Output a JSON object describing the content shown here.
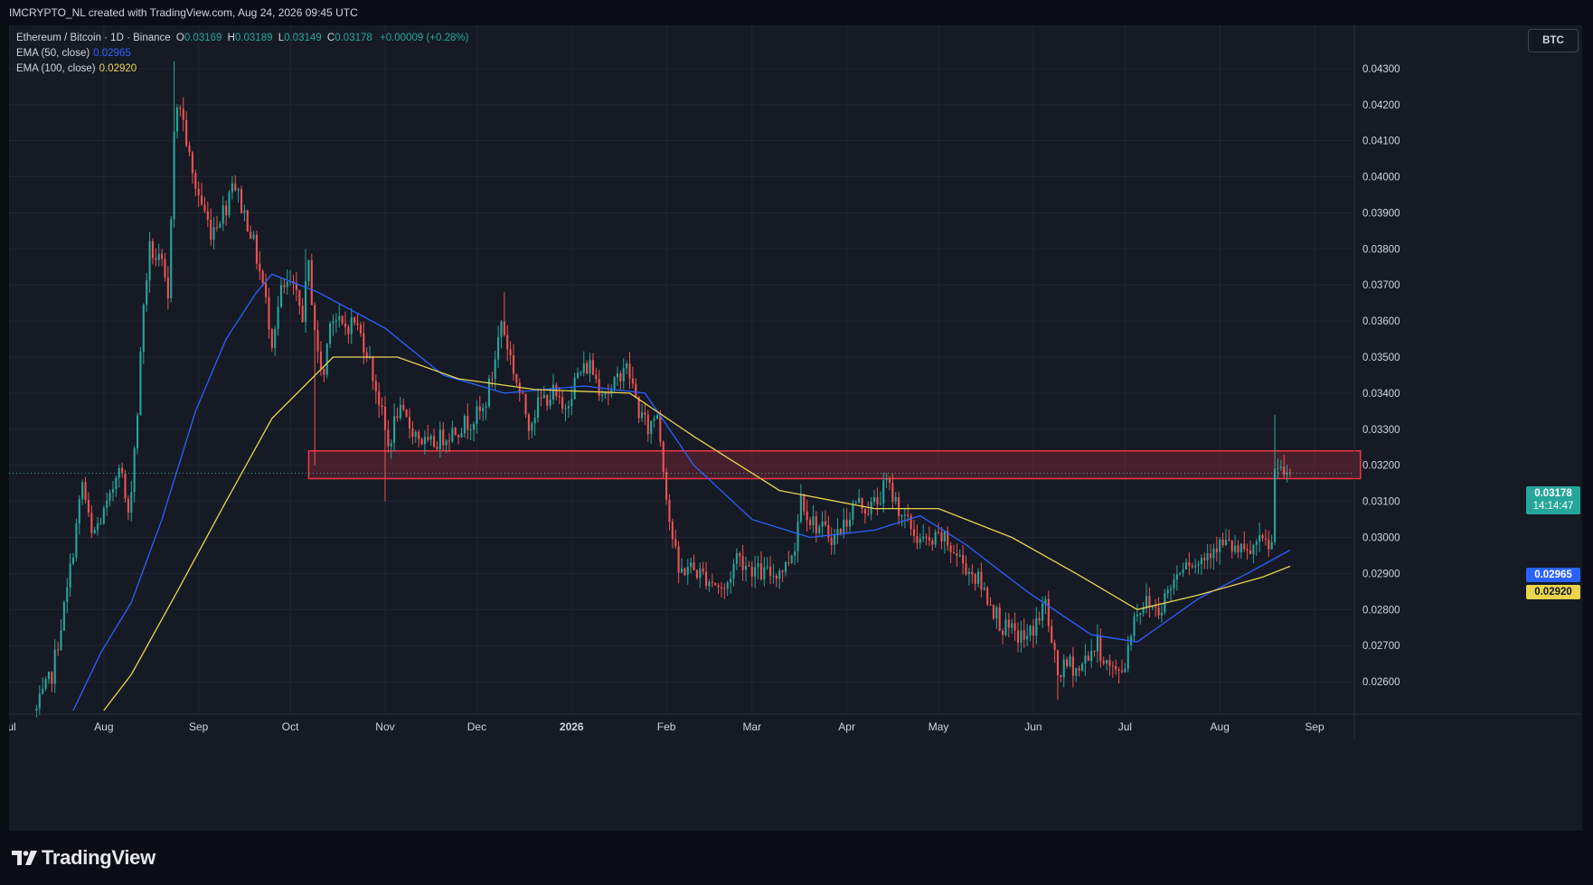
{
  "header": {
    "attribution": "IMCRYPTO_NL created with TradingView.com, Aug 24, 2026 09:45 UTC"
  },
  "legend": {
    "symbol": "Ethereum / Bitcoin · 1D · Binance",
    "open_label": "O",
    "open": "0.03169",
    "high_label": "H",
    "high": "0.03189",
    "low_label": "L",
    "low": "0.03149",
    "close_label": "C",
    "close": "0.03178",
    "change": "+0.00009 (+0.28%)",
    "ema50_label": "EMA (50, close)",
    "ema50_value": "0.02965",
    "ema100_label": "EMA (100, close)",
    "ema100_value": "0.02920"
  },
  "currency_badge": "BTC",
  "price_tags": {
    "last_price": "0.03178",
    "countdown": "14:14:47",
    "ema50": "0.02965",
    "ema100": "0.02920"
  },
  "branding": {
    "wordmark": "TradingView",
    "logo_icon": "tradingview-logo-icon"
  },
  "colors": {
    "up": "#26a69a",
    "down": "#ef5350",
    "ema50": "#2962ff",
    "ema100": "#e8d44d",
    "zone_border": "#f23645",
    "zone_fill": "#6e2633",
    "background": "#161a25",
    "grid": "#222634"
  },
  "chart_data": {
    "type": "candlestick",
    "title": "Ethereum / Bitcoin · 1D · Binance",
    "y_scale": "linear",
    "ylim": [
      0.0251,
      0.0442
    ],
    "y_ticks": [
      "0.02600",
      "0.02700",
      "0.02800",
      "0.02900",
      "0.03000",
      "0.03100",
      "0.03200",
      "0.03300",
      "0.03400",
      "0.03500",
      "0.03600",
      "0.03700",
      "0.03800",
      "0.03900",
      "0.04000",
      "0.04100",
      "0.04200",
      "0.04300"
    ],
    "x_range": [
      "2025-07-01",
      "2026-09-14"
    ],
    "x_ticks": [
      {
        "date": "2025-07-01",
        "label": "Jul"
      },
      {
        "date": "2025-08-01",
        "label": "Aug"
      },
      {
        "date": "2025-09-01",
        "label": "Sep"
      },
      {
        "date": "2025-10-01",
        "label": "Oct"
      },
      {
        "date": "2025-11-01",
        "label": "Nov"
      },
      {
        "date": "2025-12-01",
        "label": "Dec"
      },
      {
        "date": "2026-01-01",
        "label": "2026"
      },
      {
        "date": "2026-02-01",
        "label": "Feb"
      },
      {
        "date": "2026-03-01",
        "label": "Mar"
      },
      {
        "date": "2026-04-01",
        "label": "Apr"
      },
      {
        "date": "2026-05-01",
        "label": "May"
      },
      {
        "date": "2026-06-01",
        "label": "Jun"
      },
      {
        "date": "2026-07-01",
        "label": "Jul"
      },
      {
        "date": "2026-08-01",
        "label": "Aug"
      },
      {
        "date": "2026-09-01",
        "label": "Sep"
      }
    ],
    "last_close": 0.03178,
    "close_path": [
      [
        "2025-07-10",
        0.0252
      ],
      [
        "2025-07-15",
        0.0262
      ],
      [
        "2025-07-20",
        0.0285
      ],
      [
        "2025-07-25",
        0.0315
      ],
      [
        "2025-07-28",
        0.03
      ],
      [
        "2025-08-03",
        0.031
      ],
      [
        "2025-08-06",
        0.0322
      ],
      [
        "2025-08-09",
        0.0305
      ],
      [
        "2025-08-12",
        0.0335
      ],
      [
        "2025-08-14",
        0.0365
      ],
      [
        "2025-08-16",
        0.038
      ],
      [
        "2025-08-20",
        0.0375
      ],
      [
        "2025-08-22",
        0.0365
      ],
      [
        "2025-08-24",
        0.0415
      ],
      [
        "2025-08-26",
        0.042
      ],
      [
        "2025-08-30",
        0.04
      ],
      [
        "2025-09-05",
        0.0385
      ],
      [
        "2025-09-10",
        0.0392
      ],
      [
        "2025-09-12",
        0.04
      ],
      [
        "2025-09-15",
        0.0392
      ],
      [
        "2025-09-18",
        0.0385
      ],
      [
        "2025-09-22",
        0.037
      ],
      [
        "2025-09-25",
        0.0355
      ],
      [
        "2025-09-28",
        0.0368
      ],
      [
        "2025-10-01",
        0.037
      ],
      [
        "2025-10-05",
        0.0362
      ],
      [
        "2025-10-07",
        0.0375
      ],
      [
        "2025-10-10",
        0.035
      ],
      [
        "2025-10-12",
        0.0345
      ],
      [
        "2025-10-14",
        0.0362
      ],
      [
        "2025-10-18",
        0.0358
      ],
      [
        "2025-10-22",
        0.036
      ],
      [
        "2025-10-26",
        0.0352
      ],
      [
        "2025-10-30",
        0.0338
      ],
      [
        "2025-11-02",
        0.0325
      ],
      [
        "2025-11-05",
        0.0335
      ],
      [
        "2025-11-10",
        0.033
      ],
      [
        "2025-11-15",
        0.0325
      ],
      [
        "2025-11-20",
        0.0328
      ],
      [
        "2025-11-24",
        0.033
      ],
      [
        "2025-11-28",
        0.0332
      ],
      [
        "2025-12-03",
        0.0335
      ],
      [
        "2025-12-06",
        0.0345
      ],
      [
        "2025-12-09",
        0.036
      ],
      [
        "2025-12-12",
        0.035
      ],
      [
        "2025-12-15",
        0.034
      ],
      [
        "2025-12-18",
        0.0332
      ],
      [
        "2025-12-22",
        0.0338
      ],
      [
        "2025-12-26",
        0.034
      ],
      [
        "2025-12-29",
        0.0335
      ],
      [
        "2026-01-03",
        0.0345
      ],
      [
        "2026-01-07",
        0.0348
      ],
      [
        "2026-01-10",
        0.0342
      ],
      [
        "2026-01-14",
        0.034
      ],
      [
        "2026-01-18",
        0.0348
      ],
      [
        "2026-01-20",
        0.0345
      ],
      [
        "2026-01-23",
        0.0335
      ],
      [
        "2026-01-26",
        0.033
      ],
      [
        "2026-01-29",
        0.0335
      ],
      [
        "2026-01-31",
        0.032
      ],
      [
        "2026-02-02",
        0.0305
      ],
      [
        "2026-02-05",
        0.029
      ],
      [
        "2026-02-08",
        0.0292
      ],
      [
        "2026-02-12",
        0.029
      ],
      [
        "2026-02-16",
        0.0288
      ],
      [
        "2026-02-20",
        0.0285
      ],
      [
        "2026-02-24",
        0.0295
      ],
      [
        "2026-02-28",
        0.0292
      ],
      [
        "2026-03-04",
        0.029
      ],
      [
        "2026-03-08",
        0.029
      ],
      [
        "2026-03-12",
        0.0292
      ],
      [
        "2026-03-15",
        0.0298
      ],
      [
        "2026-03-17",
        0.0312
      ],
      [
        "2026-03-20",
        0.0305
      ],
      [
        "2026-03-24",
        0.0302
      ],
      [
        "2026-03-28",
        0.03
      ],
      [
        "2026-04-01",
        0.0305
      ],
      [
        "2026-04-04",
        0.031
      ],
      [
        "2026-04-08",
        0.0308
      ],
      [
        "2026-04-11",
        0.031
      ],
      [
        "2026-04-14",
        0.0315
      ],
      [
        "2026-04-17",
        0.031
      ],
      [
        "2026-04-20",
        0.0305
      ],
      [
        "2026-04-24",
        0.03
      ],
      [
        "2026-04-28",
        0.0298
      ],
      [
        "2026-05-02",
        0.03
      ],
      [
        "2026-05-06",
        0.0296
      ],
      [
        "2026-05-10",
        0.0292
      ],
      [
        "2026-05-14",
        0.0288
      ],
      [
        "2026-05-18",
        0.0282
      ],
      [
        "2026-05-22",
        0.0275
      ],
      [
        "2026-05-26",
        0.0273
      ],
      [
        "2026-05-30",
        0.0272
      ],
      [
        "2026-06-03",
        0.0278
      ],
      [
        "2026-06-05",
        0.0282
      ],
      [
        "2026-06-07",
        0.027
      ],
      [
        "2026-06-09",
        0.0262
      ],
      [
        "2026-06-13",
        0.0265
      ],
      [
        "2026-06-16",
        0.0263
      ],
      [
        "2026-06-19",
        0.0268
      ],
      [
        "2026-06-22",
        0.027
      ],
      [
        "2026-06-25",
        0.0265
      ],
      [
        "2026-06-28",
        0.0262
      ],
      [
        "2026-07-01",
        0.0265
      ],
      [
        "2026-07-03",
        0.0275
      ],
      [
        "2026-07-05",
        0.028
      ],
      [
        "2026-07-08",
        0.0282
      ],
      [
        "2026-07-12",
        0.028
      ],
      [
        "2026-07-15",
        0.0285
      ],
      [
        "2026-07-18",
        0.029
      ],
      [
        "2026-07-21",
        0.0295
      ],
      [
        "2026-07-24",
        0.0292
      ],
      [
        "2026-07-27",
        0.0295
      ],
      [
        "2026-07-30",
        0.0298
      ],
      [
        "2026-08-03",
        0.0298
      ],
      [
        "2026-08-07",
        0.0296
      ],
      [
        "2026-08-10",
        0.0295
      ],
      [
        "2026-08-13",
        0.0298
      ],
      [
        "2026-08-16",
        0.0298
      ],
      [
        "2026-08-18",
        0.0298
      ],
      [
        "2026-08-19",
        0.0318
      ],
      [
        "2026-08-20",
        0.0322
      ],
      [
        "2026-08-21",
        0.032
      ],
      [
        "2026-08-22",
        0.0315
      ],
      [
        "2026-08-23",
        0.0316
      ],
      [
        "2026-08-24",
        0.03178
      ]
    ],
    "spikes": [
      {
        "date": "2025-08-24",
        "high": 0.0432
      },
      {
        "date": "2025-10-06",
        "high": 0.038
      },
      {
        "date": "2025-10-09",
        "low": 0.032
      },
      {
        "date": "2025-11-01",
        "low": 0.031
      },
      {
        "date": "2025-12-10",
        "high": 0.0368
      },
      {
        "date": "2026-06-09",
        "low": 0.0255
      },
      {
        "date": "2026-08-19",
        "high": 0.0334
      }
    ],
    "series": [
      {
        "name": "EMA (50, close)",
        "color": "#2962ff",
        "points": [
          [
            "2025-07-22",
            0.0252
          ],
          [
            "2025-07-31",
            0.0268
          ],
          [
            "2025-08-10",
            0.0282
          ],
          [
            "2025-08-20",
            0.0305
          ],
          [
            "2025-08-31",
            0.0335
          ],
          [
            "2025-09-10",
            0.0355
          ],
          [
            "2025-09-20",
            0.0368
          ],
          [
            "2025-09-25",
            0.0373
          ],
          [
            "2025-10-10",
            0.0368
          ],
          [
            "2025-11-01",
            0.0358
          ],
          [
            "2025-11-20",
            0.0345
          ],
          [
            "2025-12-10",
            0.034
          ],
          [
            "2026-01-05",
            0.0342
          ],
          [
            "2026-01-25",
            0.034
          ],
          [
            "2026-02-10",
            0.032
          ],
          [
            "2026-03-01",
            0.0305
          ],
          [
            "2026-03-20",
            0.03
          ],
          [
            "2026-04-10",
            0.0302
          ],
          [
            "2026-04-25",
            0.0306
          ],
          [
            "2026-05-10",
            0.0298
          ],
          [
            "2026-05-30",
            0.0285
          ],
          [
            "2026-06-20",
            0.0273
          ],
          [
            "2026-07-05",
            0.0271
          ],
          [
            "2026-07-25",
            0.0283
          ],
          [
            "2026-08-10",
            0.029
          ],
          [
            "2026-08-24",
            0.02965
          ]
        ]
      },
      {
        "name": "EMA (100, close)",
        "color": "#e8d44d",
        "points": [
          [
            "2025-08-01",
            0.0252
          ],
          [
            "2025-08-10",
            0.0262
          ],
          [
            "2025-08-25",
            0.0285
          ],
          [
            "2025-09-10",
            0.031
          ],
          [
            "2025-09-25",
            0.0333
          ],
          [
            "2025-10-15",
            0.035
          ],
          [
            "2025-11-05",
            0.035
          ],
          [
            "2025-11-25",
            0.0344
          ],
          [
            "2025-12-20",
            0.0341
          ],
          [
            "2026-01-20",
            0.034
          ],
          [
            "2026-02-10",
            0.0328
          ],
          [
            "2026-03-10",
            0.0313
          ],
          [
            "2026-04-10",
            0.0308
          ],
          [
            "2026-05-01",
            0.0308
          ],
          [
            "2026-05-25",
            0.03
          ],
          [
            "2026-06-15",
            0.029
          ],
          [
            "2026-07-05",
            0.028
          ],
          [
            "2026-07-25",
            0.0284
          ],
          [
            "2026-08-15",
            0.0289
          ],
          [
            "2026-08-24",
            0.0292
          ]
        ]
      }
    ],
    "zones": [
      {
        "name": "resistance-zone",
        "x_start": "2025-10-07",
        "x_end": "2026-09-16",
        "y_low": 0.03163,
        "y_high": 0.0324
      }
    ]
  }
}
